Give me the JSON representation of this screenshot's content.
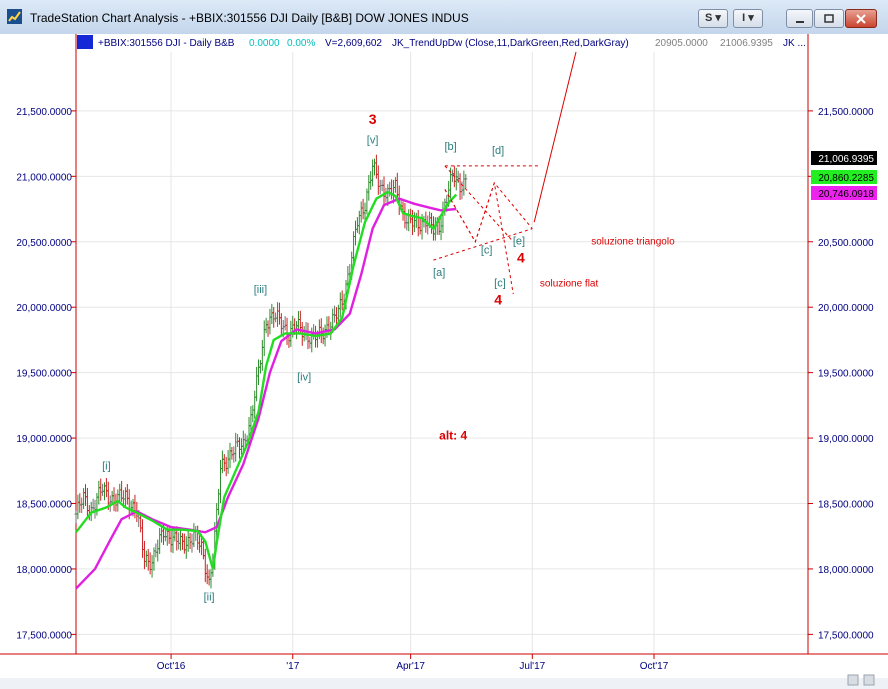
{
  "window": {
    "title": "TradeStation Chart Analysis - +BBIX:301556 DJI Daily [B&B] DOW JONES INDUS",
    "btn_s": "S",
    "btn_i": "I"
  },
  "header": {
    "symbol": "+BBIX:301556 DJI - Daily  B&B",
    "change": "0.0000",
    "change_pct": "0.00%",
    "volume": "V=2,609,602",
    "indicator": "JK_TrendUpDw (Close,11,DarkGreen,Red,DarkGray)",
    "val1": "20905.0000",
    "val2": "21006.9395",
    "tail": "JK ..."
  },
  "colors": {
    "up_bar": "#2e8b2e",
    "down_bar": "#cc2222",
    "neutral_bar": "#707070",
    "green_line": "#22dd22",
    "magenta_line": "#e020e0",
    "axis_red": "#cc0000",
    "label_blue": "#000080",
    "wave_teal": "#2a7d7d",
    "annot_red": "#dd0000"
  },
  "chart_data": {
    "type": "candlestick",
    "y_ticks": [
      "21,500.0000",
      "21,000.0000",
      "20,500.0000",
      "20,000.0000",
      "19,500.0000",
      "19,000.0000",
      "18,500.0000",
      "18,000.0000",
      "17,500.0000"
    ],
    "y_tick_values": [
      21500,
      21000,
      20500,
      20000,
      19500,
      19000,
      18500,
      18000,
      17500
    ],
    "ylim": [
      17350,
      21950
    ],
    "xlim": [
      0,
      385
    ],
    "x_ticks": [
      {
        "label": "Oct'16",
        "x": 50
      },
      {
        "label": "'17",
        "x": 114
      },
      {
        "label": "Apr'17",
        "x": 176
      },
      {
        "label": "Jul'17",
        "x": 240
      },
      {
        "label": "Oct'17",
        "x": 304
      }
    ],
    "price_tags": [
      {
        "label": "21,006.9395",
        "value": 21006.94,
        "bg": "#000000",
        "fg": "#ffffff"
      },
      {
        "label": "20,860.2285",
        "value": 20860.23,
        "bg": "#22ee22",
        "fg": "#000000"
      },
      {
        "label": "20,746.0918",
        "value": 20746.09,
        "bg": "#ee22ee",
        "fg": "#000000"
      }
    ],
    "anchors": [
      [
        0,
        18420
      ],
      [
        4,
        18540
      ],
      [
        8,
        18450
      ],
      [
        14,
        18610
      ],
      [
        20,
        18520
      ],
      [
        26,
        18560
      ],
      [
        32,
        18430
      ],
      [
        36,
        18080
      ],
      [
        40,
        18060
      ],
      [
        46,
        18280
      ],
      [
        50,
        18250
      ],
      [
        56,
        18180
      ],
      [
        62,
        18260
      ],
      [
        66,
        18150
      ],
      [
        70,
        17900
      ],
      [
        72,
        18100
      ],
      [
        74,
        18400
      ],
      [
        76,
        18770
      ],
      [
        82,
        18900
      ],
      [
        88,
        18950
      ],
      [
        92,
        19150
      ],
      [
        96,
        19500
      ],
      [
        100,
        19900
      ],
      [
        104,
        19930
      ],
      [
        108,
        19880
      ],
      [
        112,
        19800
      ],
      [
        116,
        19850
      ],
      [
        120,
        19820
      ],
      [
        124,
        19750
      ],
      [
        128,
        19790
      ],
      [
        132,
        19850
      ],
      [
        136,
        19900
      ],
      [
        140,
        20050
      ],
      [
        144,
        20300
      ],
      [
        148,
        20650
      ],
      [
        152,
        20800
      ],
      [
        156,
        21070
      ],
      [
        160,
        20920
      ],
      [
        164,
        20880
      ],
      [
        168,
        20900
      ],
      [
        172,
        20720
      ],
      [
        176,
        20650
      ],
      [
        180,
        20620
      ],
      [
        184,
        20680
      ],
      [
        188,
        20580
      ],
      [
        191,
        20610
      ],
      [
        194,
        20800
      ],
      [
        198,
        21000
      ],
      [
        202,
        20930
      ],
      [
        205,
        20980
      ]
    ],
    "green_line": [
      [
        0,
        18280
      ],
      [
        8,
        18430
      ],
      [
        16,
        18470
      ],
      [
        22,
        18520
      ],
      [
        26,
        18470
      ],
      [
        32,
        18430
      ],
      [
        40,
        18370
      ],
      [
        48,
        18300
      ],
      [
        56,
        18300
      ],
      [
        64,
        18290
      ],
      [
        68,
        18210
      ],
      [
        72,
        18000
      ],
      [
        74,
        18200
      ],
      [
        78,
        18550
      ],
      [
        84,
        18750
      ],
      [
        90,
        18950
      ],
      [
        96,
        19200
      ],
      [
        100,
        19550
      ],
      [
        104,
        19750
      ],
      [
        110,
        19800
      ],
      [
        118,
        19800
      ],
      [
        126,
        19780
      ],
      [
        134,
        19800
      ],
      [
        140,
        19920
      ],
      [
        146,
        20320
      ],
      [
        152,
        20650
      ],
      [
        158,
        20830
      ],
      [
        164,
        20880
      ],
      [
        168,
        20850
      ],
      [
        172,
        20720
      ],
      [
        176,
        20700
      ],
      [
        182,
        20680
      ],
      [
        188,
        20600
      ],
      [
        192,
        20700
      ],
      [
        196,
        20800
      ],
      [
        200,
        20860
      ]
    ],
    "magenta_line": [
      [
        0,
        17850
      ],
      [
        10,
        18000
      ],
      [
        18,
        18220
      ],
      [
        24,
        18380
      ],
      [
        32,
        18440
      ],
      [
        40,
        18380
      ],
      [
        50,
        18320
      ],
      [
        60,
        18300
      ],
      [
        68,
        18280
      ],
      [
        74,
        18320
      ],
      [
        80,
        18550
      ],
      [
        88,
        18800
      ],
      [
        96,
        19150
      ],
      [
        102,
        19500
      ],
      [
        108,
        19740
      ],
      [
        116,
        19830
      ],
      [
        126,
        19800
      ],
      [
        136,
        19830
      ],
      [
        144,
        19950
      ],
      [
        150,
        20250
      ],
      [
        156,
        20600
      ],
      [
        162,
        20780
      ],
      [
        170,
        20830
      ],
      [
        178,
        20790
      ],
      [
        186,
        20760
      ],
      [
        192,
        20740
      ],
      [
        200,
        20750
      ]
    ],
    "projections": {
      "red_solid": [
        [
          241,
          20650
        ],
        [
          263,
          21950
        ]
      ],
      "flat_dashed": [
        [
          194,
          20900
        ],
        [
          210,
          20500
        ],
        [
          220,
          20950
        ],
        [
          230,
          20100
        ]
      ],
      "triangle_dashed": [
        [
          194,
          20900
        ],
        [
          210,
          20500
        ],
        [
          220,
          20950
        ],
        [
          240,
          20600
        ]
      ],
      "b_level_dashed": [
        [
          194,
          21080
        ],
        [
          244,
          21080
        ]
      ],
      "upper_trend_dashed": [
        [
          194,
          21080
        ],
        [
          230,
          20500
        ]
      ],
      "lower_trend_dashed": [
        [
          188,
          20360
        ],
        [
          240,
          20600
        ]
      ]
    },
    "annotations": [
      {
        "text": "3",
        "x": 156,
        "y": 21400,
        "color": "#dd0000",
        "size": 14,
        "bold": true
      },
      {
        "text": "[v]",
        "x": 156,
        "y": 21250,
        "color": "#2a7d7d",
        "size": 11,
        "bold": false
      },
      {
        "text": "[b]",
        "x": 197,
        "y": 21200,
        "color": "#2a7d7d",
        "size": 11,
        "bold": false
      },
      {
        "text": "[d]",
        "x": 222,
        "y": 21170,
        "color": "#2a7d7d",
        "size": 11,
        "bold": false
      },
      {
        "text": "[c]",
        "x": 216,
        "y": 20410,
        "color": "#2a7d7d",
        "size": 11,
        "bold": false
      },
      {
        "text": "[e]",
        "x": 233,
        "y": 20480,
        "color": "#2a7d7d",
        "size": 11,
        "bold": false
      },
      {
        "text": "soluzione triangolo",
        "x": 271,
        "y": 20480,
        "color": "#dd0000",
        "size": 10,
        "bold": false
      },
      {
        "text": "4",
        "x": 234,
        "y": 20340,
        "color": "#dd0000",
        "size": 14,
        "bold": true
      },
      {
        "text": "[a]",
        "x": 191,
        "y": 20240,
        "color": "#2a7d7d",
        "size": 11,
        "bold": false
      },
      {
        "text": "[c]",
        "x": 223,
        "y": 20160,
        "color": "#2a7d7d",
        "size": 11,
        "bold": false
      },
      {
        "text": "soluzione flat",
        "x": 244,
        "y": 20160,
        "color": "#dd0000",
        "size": 10,
        "bold": false
      },
      {
        "text": "4",
        "x": 222,
        "y": 20020,
        "color": "#dd0000",
        "size": 14,
        "bold": true
      },
      {
        "text": "[iii]",
        "x": 97,
        "y": 20110,
        "color": "#2a7d7d",
        "size": 11,
        "bold": false
      },
      {
        "text": "[iv]",
        "x": 120,
        "y": 19440,
        "color": "#2a7d7d",
        "size": 11,
        "bold": false
      },
      {
        "text": "alt: 4",
        "x": 191,
        "y": 18990,
        "color": "#dd0000",
        "size": 12,
        "bold": true
      },
      {
        "text": "[i]",
        "x": 16,
        "y": 18760,
        "color": "#2a7d7d",
        "size": 11,
        "bold": false
      },
      {
        "text": "[ii]",
        "x": 70,
        "y": 17760,
        "color": "#2a7d7d",
        "size": 11,
        "bold": false
      }
    ]
  }
}
